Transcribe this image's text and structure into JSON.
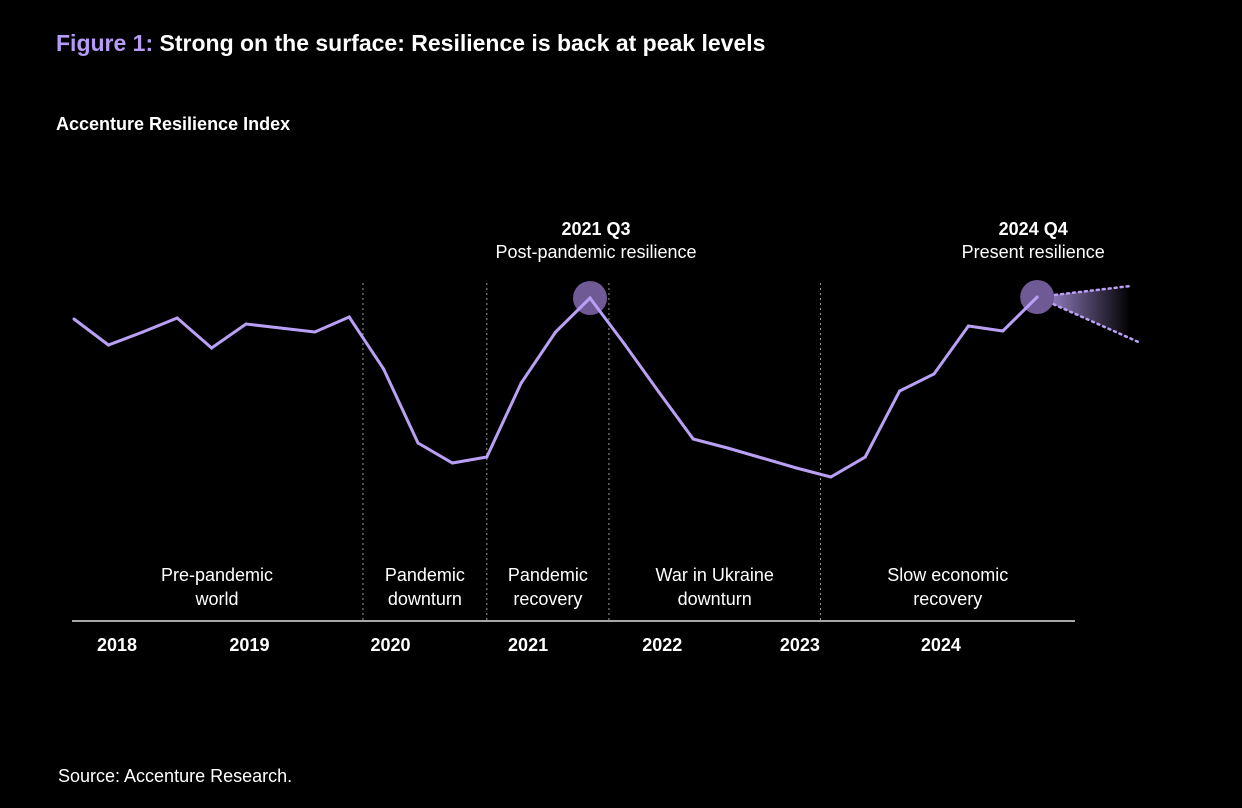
{
  "title": {
    "prefix": "Figure 1:",
    "text": "Strong on the surface: Resilience is back at peak levels"
  },
  "subtitle": "Accenture Resilience Index",
  "source": "Source: Accenture Research.",
  "colors": {
    "line": "#b9a0f5",
    "highlight": "#6f5a96",
    "title_accent": "#b79cf7",
    "separator": "#9a9a9a"
  },
  "chart_data": {
    "type": "line",
    "title": "Accenture Resilience Index",
    "xlabel": "",
    "ylabel": "",
    "x": [
      "2017 Q4",
      "2018 Q1",
      "2018 Q2",
      "2018 Q3",
      "2018 Q4",
      "2019 Q1",
      "2019 Q2",
      "2019 Q3",
      "2019 Q4",
      "2020 Q1",
      "2020 Q2",
      "2020 Q3",
      "2020 Q4",
      "2021 Q1",
      "2021 Q2",
      "2021 Q3",
      "2021 Q4",
      "2022 Q1",
      "2022 Q2",
      "2022 Q3",
      "2022 Q4",
      "2023 Q1",
      "2023 Q2",
      "2023 Q3",
      "2023 Q4",
      "2024 Q1",
      "2024 Q2",
      "2024 Q3",
      "2024 Q4"
    ],
    "series": [
      {
        "name": "Accenture Resilience Index",
        "values": [
          90.5,
          77.5,
          84,
          91,
          76,
          88,
          86,
          84,
          91.5,
          65.5,
          28.5,
          18.5,
          21.5,
          58.5,
          84,
          101,
          78,
          54,
          30.5,
          26,
          21,
          16,
          11.5,
          21.5,
          54.5,
          63,
          87,
          84.5,
          101.5
        ]
      }
    ],
    "ylim": [
      0,
      110
    ],
    "grid": false,
    "year_labels": [
      {
        "label": "2018",
        "index": 1.25
      },
      {
        "label": "2019",
        "index": 5.1
      },
      {
        "label": "2020",
        "index": 9.2
      },
      {
        "label": "2021",
        "index": 13.2
      },
      {
        "label": "2022",
        "index": 17.1
      },
      {
        "label": "2023",
        "index": 21.1
      },
      {
        "label": "2024",
        "index": 25.2
      }
    ],
    "periods": [
      {
        "line1": "Pre-pandemic",
        "line2": "world",
        "start": 0,
        "end": 8.4
      },
      {
        "line1": "Pandemic",
        "line2": "downturn",
        "start": 8.4,
        "end": 12.0
      },
      {
        "line1": "Pandemic",
        "line2": "recovery",
        "start": 12.0,
        "end": 15.55
      },
      {
        "line1": "War in Ukraine",
        "line2": "downturn",
        "start": 15.55,
        "end": 21.7
      },
      {
        "line1": "Slow economic",
        "line2": "recovery",
        "start": 21.7,
        "end": 29.4
      }
    ],
    "annotations": [
      {
        "label": "2021 Q3",
        "text": "Post-pandemic resilience",
        "index": 15
      },
      {
        "label": "2024 Q4",
        "text": "Present resilience",
        "index": 28
      }
    ],
    "forecast_cone": {
      "from_index": 28,
      "upper_value": 107,
      "lower_value": 81,
      "to_index": 31
    }
  }
}
